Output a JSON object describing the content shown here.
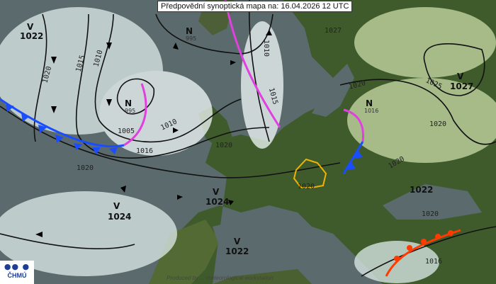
{
  "title": "Předpovědní synoptická mapa na: 16.04.2026 12 UTC",
  "logo": {
    "text": "ČHMÚ"
  },
  "watermark": "Produced by ... meteorological workstation",
  "colors": {
    "sea": "#5b6a6c",
    "land": "#3d5a2a",
    "cloud": "#e8f2f2",
    "cold_front": "#1a4dff",
    "occluded_front": "#e040e0",
    "warm_front": "#ff3a00",
    "czech_border": "#f0b400"
  },
  "pressure_centers": [
    {
      "type": "V",
      "value": "1022"
    },
    {
      "type": "N",
      "value": "995"
    },
    {
      "type": "N",
      "value": "995"
    },
    {
      "type": "V",
      "value": "1027"
    },
    {
      "type": "N",
      "value": "1016"
    },
    {
      "type": "V",
      "value": "1024"
    },
    {
      "type": "V",
      "value": "1024"
    },
    {
      "type": "V",
      "value": "1022"
    },
    {
      "type": "",
      "value": "1022"
    },
    {
      "type": "",
      "value": "1027"
    }
  ],
  "isobar_labels": [
    "1020",
    "1015",
    "1010",
    "1005",
    "1010",
    "1016",
    "1020",
    "1010",
    "1015",
    "1020",
    "1020",
    "1020",
    "1025",
    "1020",
    "1020",
    "1020",
    "1016"
  ]
}
